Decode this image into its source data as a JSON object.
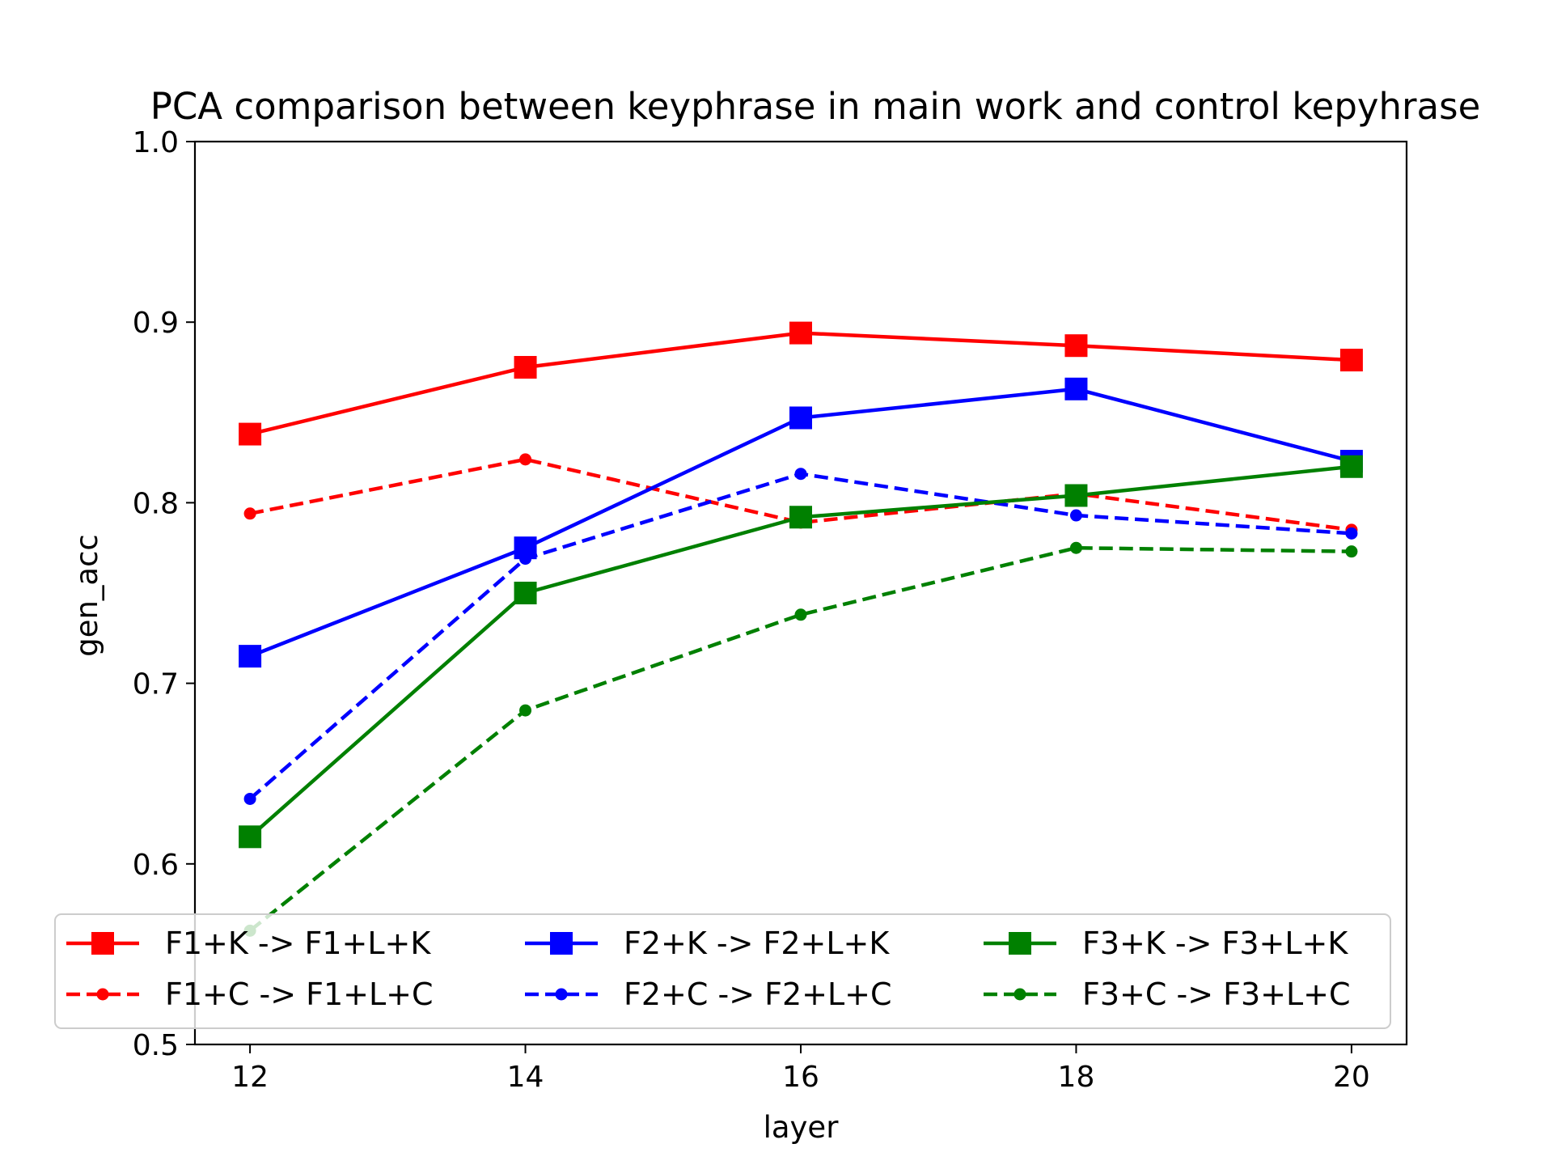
{
  "chart_data": {
    "type": "line",
    "title": "PCA comparison between keyphrase in main work and control kepyhrase",
    "xlabel": "layer",
    "ylabel": "gen_acc",
    "x": [
      12,
      14,
      16,
      18,
      20
    ],
    "xticks": [
      12,
      14,
      16,
      18,
      20
    ],
    "xlim": [
      11.6,
      20.4
    ],
    "ylim": [
      0.5,
      1.0
    ],
    "yticks": [
      0.5,
      0.6,
      0.7,
      0.8,
      0.9,
      1.0
    ],
    "ytick_labels": [
      "0.5",
      "0.6",
      "0.7",
      "0.8",
      "0.9",
      "1.0"
    ],
    "grid": false,
    "legend_position": "lower-center",
    "legend_columns": 3,
    "series": [
      {
        "name": "F1+K -> F1+L+K",
        "color": "#ff0000",
        "style": "solid",
        "marker": "square",
        "values": [
          0.838,
          0.875,
          0.894,
          0.887,
          0.879
        ]
      },
      {
        "name": "F1+C -> F1+L+C",
        "color": "#ff0000",
        "style": "dashed",
        "marker": "dot",
        "values": [
          0.794,
          0.824,
          0.789,
          0.805,
          0.785
        ]
      },
      {
        "name": "F2+K -> F2+L+K",
        "color": "#0000ff",
        "style": "solid",
        "marker": "square",
        "values": [
          0.715,
          0.775,
          0.847,
          0.863,
          0.823
        ]
      },
      {
        "name": "F2+C -> F2+L+C",
        "color": "#0000ff",
        "style": "dashed",
        "marker": "dot",
        "values": [
          0.636,
          0.769,
          0.816,
          0.793,
          0.783
        ]
      },
      {
        "name": "F3+K -> F3+L+K",
        "color": "#008000",
        "style": "solid",
        "marker": "square",
        "values": [
          0.615,
          0.75,
          0.792,
          0.804,
          0.82
        ]
      },
      {
        "name": "F3+C -> F3+L+C",
        "color": "#008000",
        "style": "dashed",
        "marker": "dot",
        "values": [
          0.563,
          0.685,
          0.738,
          0.775,
          0.773
        ]
      }
    ]
  }
}
